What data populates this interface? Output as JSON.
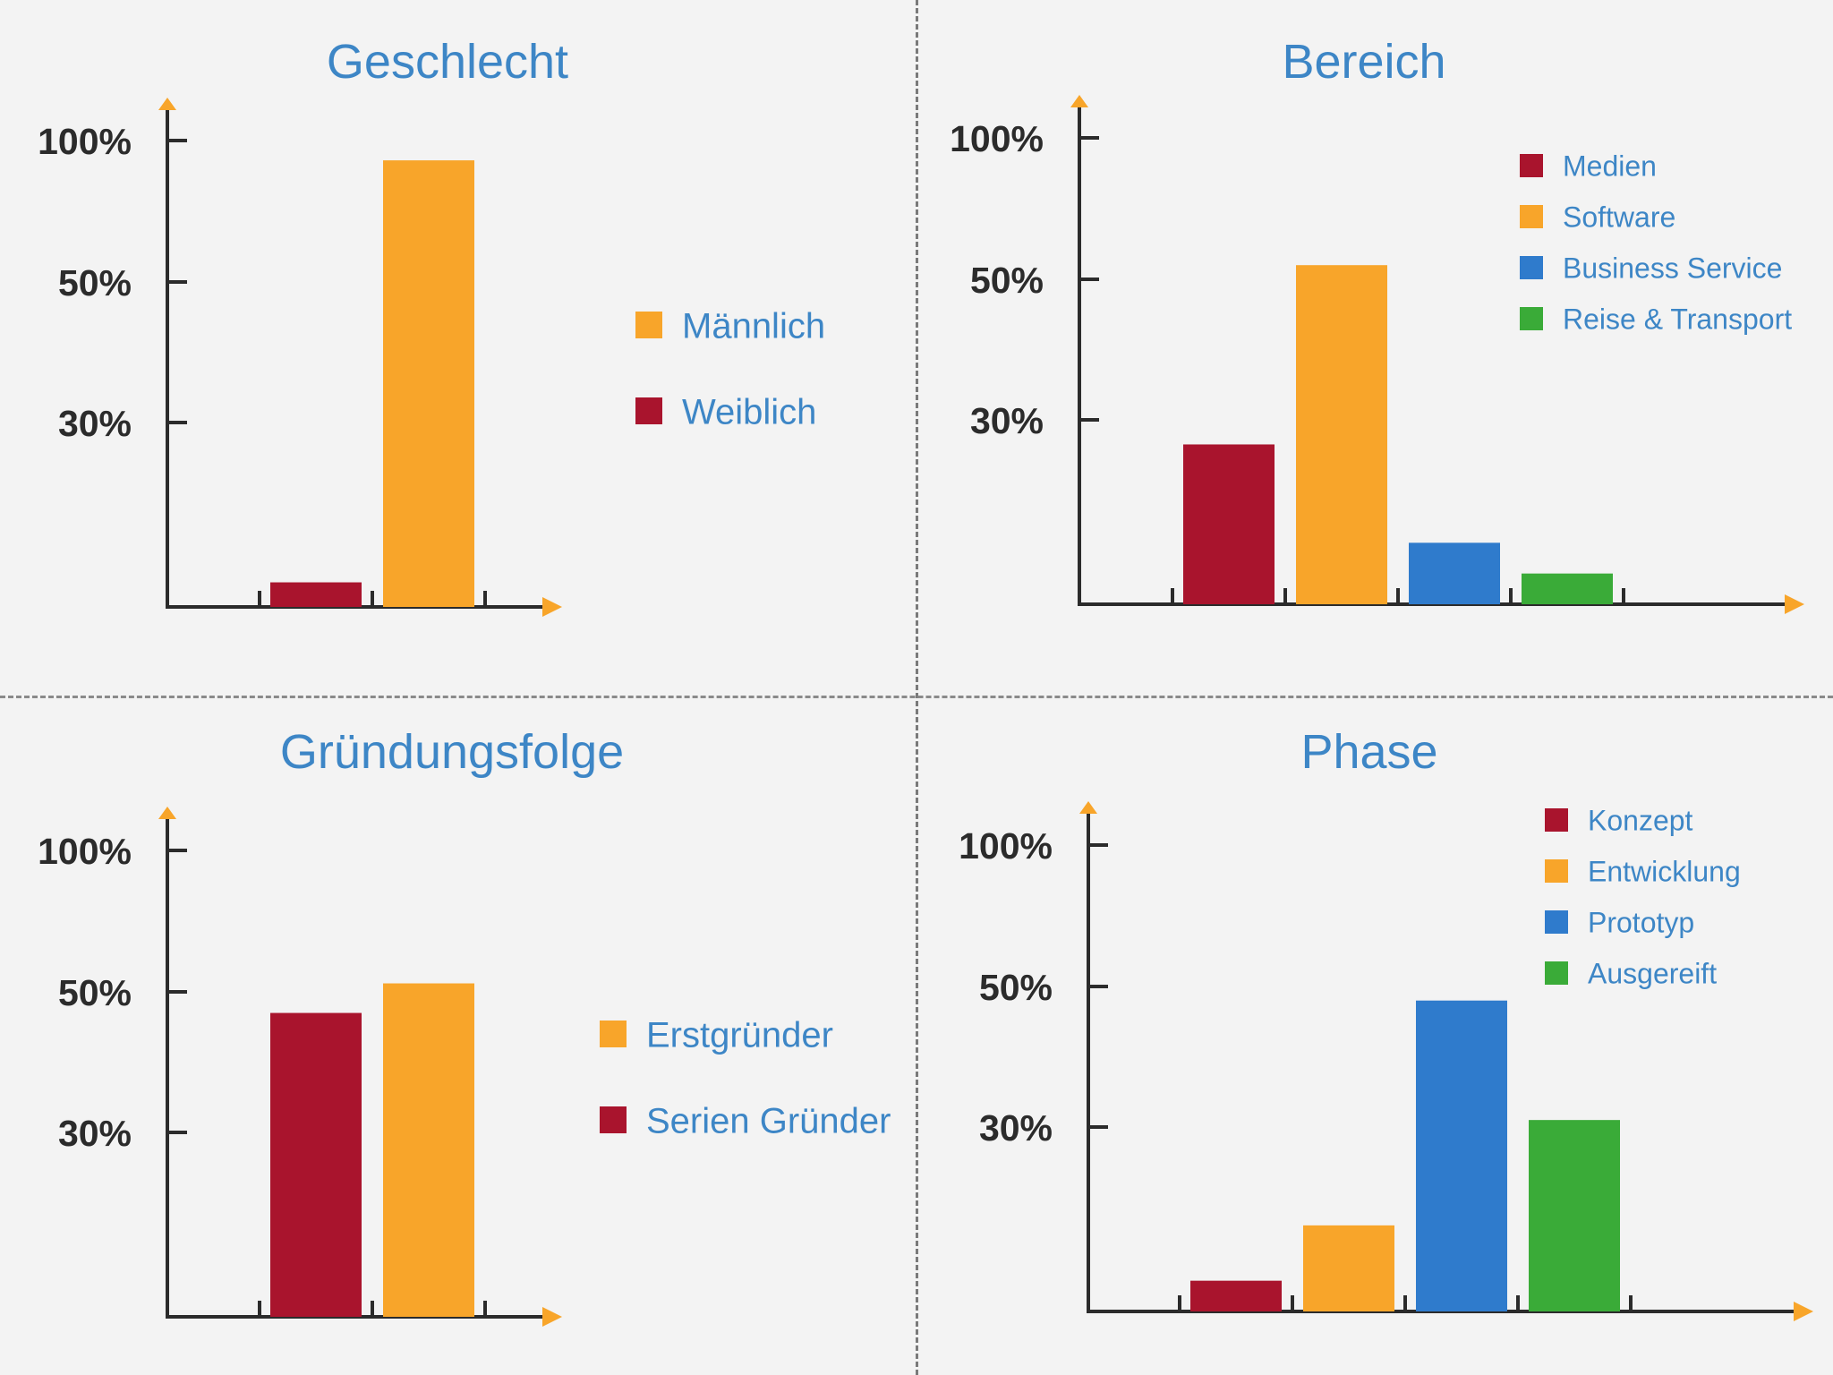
{
  "colors": {
    "red": "#a9142d",
    "orange": "#f8a52a",
    "blue": "#2f7bcc",
    "green": "#3aab38",
    "axis": "#2b2b2b",
    "arrow": "#f8a52a",
    "title": "#3d86c6",
    "background": "#f3f3f3"
  },
  "chart_data": [
    {
      "type": "bar",
      "title": "Geschlecht",
      "yticks": [
        "100%",
        "50%",
        "30%"
      ],
      "series": [
        {
          "name": "Weiblich",
          "color": "red",
          "value": 4
        },
        {
          "name": "Männlich",
          "color": "orange",
          "value": 93
        }
      ],
      "legend": [
        "Männlich",
        "Weiblich"
      ],
      "legend_placement": "right"
    },
    {
      "type": "bar",
      "title": "Bereich",
      "yticks": [
        "100%",
        "50%",
        "30%"
      ],
      "series": [
        {
          "name": "Medien",
          "color": "red",
          "value": 26
        },
        {
          "name": "Software",
          "color": "orange",
          "value": 55
        },
        {
          "name": "Business Service",
          "color": "blue",
          "value": 10
        },
        {
          "name": "Reise & Transport",
          "color": "green",
          "value": 5
        }
      ],
      "legend": [
        "Medien",
        "Software",
        "Business Service",
        "Reise & Transport"
      ],
      "legend_placement": "top-right"
    },
    {
      "type": "bar",
      "title": "Gründungsfolge",
      "yticks": [
        "100%",
        "50%",
        "30%"
      ],
      "series": [
        {
          "name": "Serien Gründer",
          "color": "red",
          "value": 47
        },
        {
          "name": "Erstgründer",
          "color": "orange",
          "value": 53
        }
      ],
      "legend": [
        "Erstgründer",
        "Serien Gründer"
      ],
      "legend_placement": "right"
    },
    {
      "type": "bar",
      "title": "Phase",
      "yticks": [
        "100%",
        "50%",
        "30%"
      ],
      "series": [
        {
          "name": "Konzept",
          "color": "red",
          "value": 5
        },
        {
          "name": "Entwicklung",
          "color": "orange",
          "value": 14
        },
        {
          "name": "Prototyp",
          "color": "blue",
          "value": 48
        },
        {
          "name": "Ausgereift",
          "color": "green",
          "value": 31
        }
      ],
      "legend": [
        "Konzept",
        "Entwicklung",
        "Prototyp",
        "Ausgereift"
      ],
      "legend_placement": "top-right"
    }
  ]
}
